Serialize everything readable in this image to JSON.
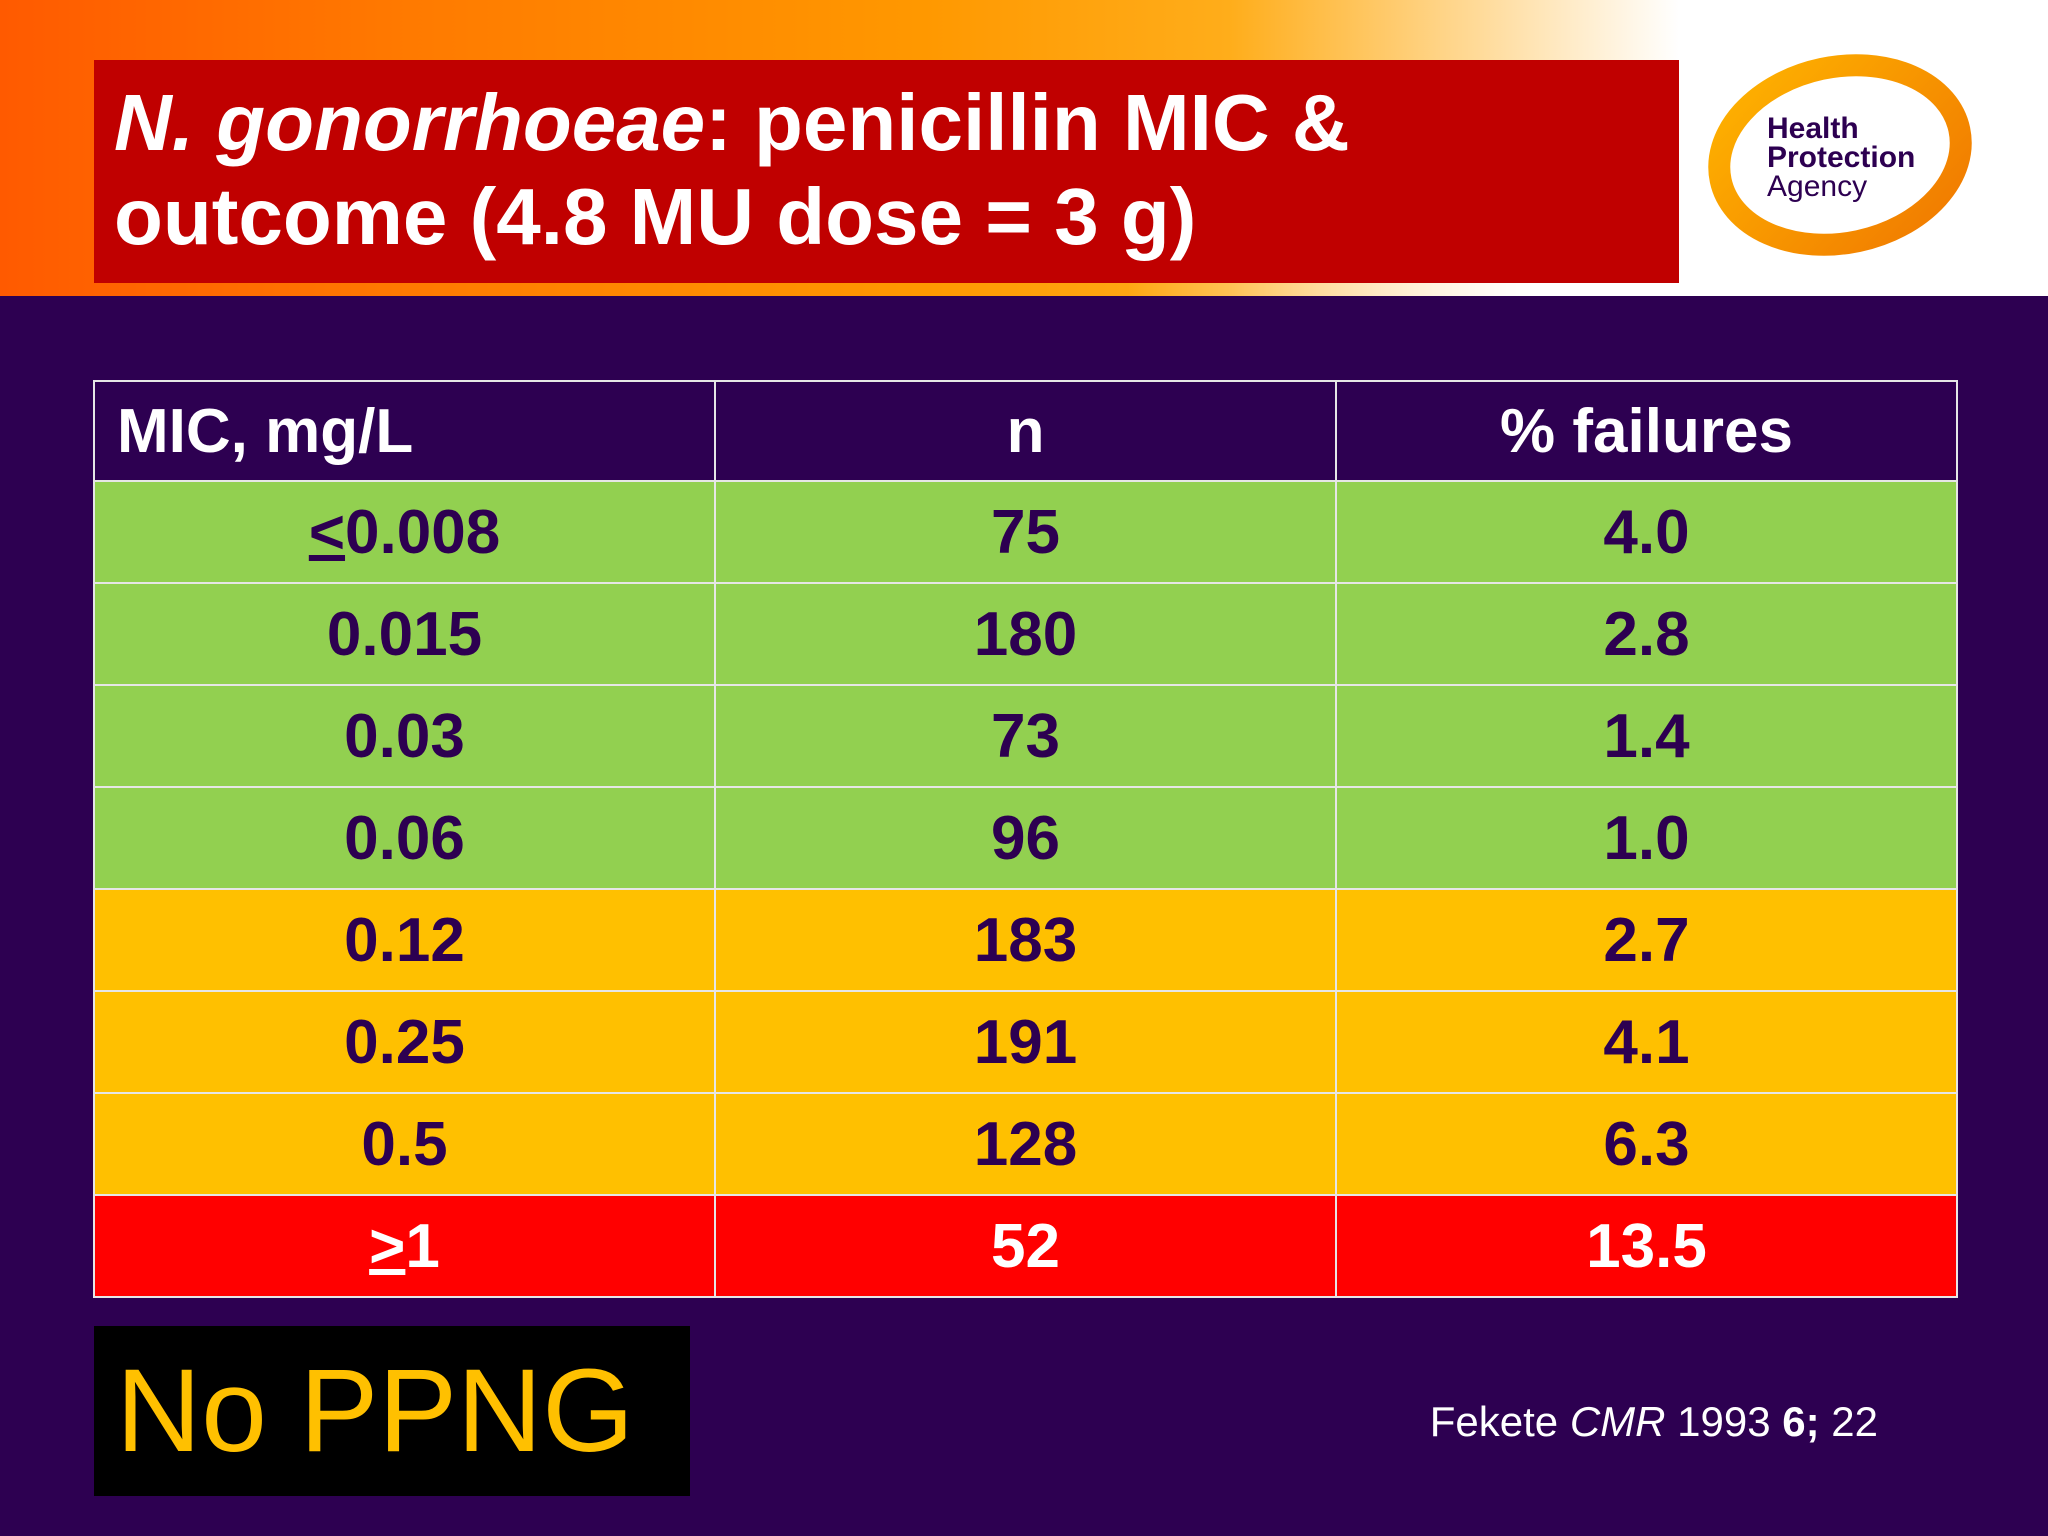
{
  "title": {
    "italic": "N. gonorrhoeae",
    "rest": ": penicillin MIC & outcome (4.8 MU dose = 3 g)"
  },
  "logo": {
    "line1": "Health",
    "line2": "Protection",
    "line3": "Agency"
  },
  "table": {
    "headers": [
      "MIC, mg/L",
      "n",
      "% failures"
    ],
    "rows": [
      {
        "prefix": "<",
        "mic": "0.008",
        "n": "75",
        "failures": "4.0",
        "band": "green"
      },
      {
        "prefix": "",
        "mic": "0.015",
        "n": "180",
        "failures": "2.8",
        "band": "green"
      },
      {
        "prefix": "",
        "mic": "0.03",
        "n": "73",
        "failures": "1.4",
        "band": "green"
      },
      {
        "prefix": "",
        "mic": "0.06",
        "n": "96",
        "failures": "1.0",
        "band": "green"
      },
      {
        "prefix": "",
        "mic": "0.12",
        "n": "183",
        "failures": "2.7",
        "band": "amber"
      },
      {
        "prefix": "",
        "mic": "0.25",
        "n": "191",
        "failures": "4.1",
        "band": "amber"
      },
      {
        "prefix": "",
        "mic": "0.5",
        "n": "128",
        "failures": "6.3",
        "band": "amber"
      },
      {
        "prefix": ">",
        "mic": "1",
        "n": "52",
        "failures": "13.5",
        "band": "red"
      }
    ]
  },
  "note": "No PPNG",
  "citation": {
    "author": "Fekete ",
    "journal": "CMR",
    "year": " 1993 ",
    "volume": "6;",
    "page": " 22"
  },
  "colors": {
    "background": "#2d0051",
    "title_box": "#c00000",
    "green": "#92d050",
    "amber": "#ffc000",
    "red": "#ff0000"
  }
}
